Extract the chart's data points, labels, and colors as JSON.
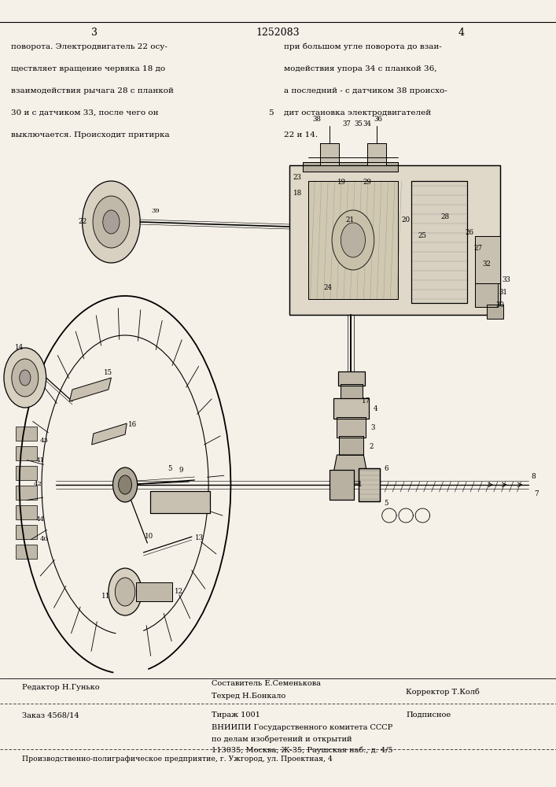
{
  "page_width": 7.07,
  "page_height": 10.0,
  "bg_color": "#f5f0e8",
  "header_page_left": "3",
  "header_patent": "1252083",
  "header_page_right": "4",
  "text_left_col": [
    "поворота. Электродвигатель 22 осу-",
    "ществляет вращение червяка 18 до",
    "взаимодействия рычага 28 с планкой",
    "30 и с датчиком 33, после чего он",
    "выключается. Происходит притирка"
  ],
  "text_right_col": [
    "при большом угле поворота до взаи-",
    "модействия упора 34 с планкой 36,",
    "а последний - с датчиком 38 происхо-",
    "дит остановка электродвигателей",
    "22 и 14."
  ],
  "line_number_5": "5",
  "footer_line1_left": "Редактор Н.Гунько",
  "footer_line1_center": "Составитель Е.Семенькова",
  "footer_line2_center": "Техред Н.Бонкало",
  "footer_line2_right": "Корректор Т.Колб",
  "footer_order": "Заказ 4568/14",
  "footer_tirazh": "Тираж 1001",
  "footer_podpisnoe": "Подписное",
  "footer_vniipii": "ВНИИПИ Государственного комитета СССР",
  "footer_po_delam": "по делам изобретений и открытий",
  "footer_address": "113035, Москва, Ж-35, Раушская наб., д. 4/5",
  "footer_bottom": "Производственно-полиграфическое предприятие, г. Ужгород, ул. Проектная, 4",
  "text_fontsize": 7.5,
  "header_fontsize": 9,
  "footer_fontsize": 7.0
}
